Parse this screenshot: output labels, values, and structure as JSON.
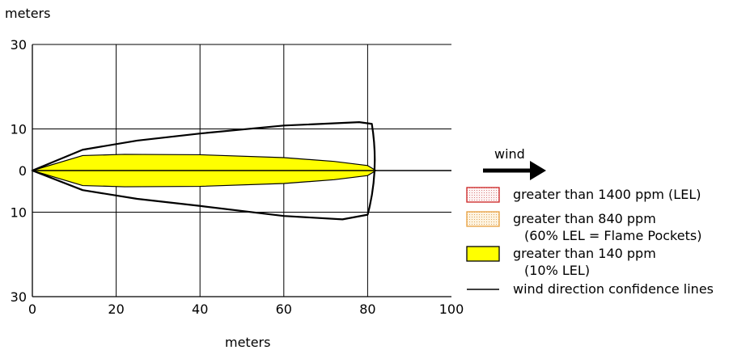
{
  "chart_data": {
    "type": "area",
    "y_unit_label": "meters",
    "xlabel": "meters",
    "x_ticks": [
      "0",
      "20",
      "40",
      "60",
      "80",
      "100"
    ],
    "y_ticks": [
      {
        "value": 30,
        "label": "30"
      },
      {
        "value": 10,
        "label": "10"
      },
      {
        "value": 0,
        "label": "0"
      },
      {
        "value": -10,
        "label": "10"
      },
      {
        "value": -30,
        "label": "30"
      }
    ],
    "xlim": [
      0,
      100
    ],
    "ylim": [
      -30,
      30
    ],
    "grid": true,
    "series": [
      {
        "name": "greater than 140 ppm (10% LEL)",
        "kind": "filled_plume",
        "color": "#ffff00",
        "half_width": [
          [
            0,
            0
          ],
          [
            12,
            3.6
          ],
          [
            22,
            3.9
          ],
          [
            40,
            3.8
          ],
          [
            60,
            3.1
          ],
          [
            72,
            2.2
          ],
          [
            80,
            1.2
          ],
          [
            82,
            0
          ]
        ]
      },
      {
        "name": "wind direction confidence lines",
        "kind": "line",
        "color": "#000000",
        "upper": [
          [
            0,
            0
          ],
          [
            12,
            5
          ],
          [
            25,
            7.2
          ],
          [
            40,
            8.9
          ],
          [
            60,
            10.8
          ],
          [
            78,
            11.6
          ],
          [
            81,
            11.2
          ]
        ],
        "lower": [
          [
            0,
            0
          ],
          [
            12,
            -4.7
          ],
          [
            25,
            -6.8
          ],
          [
            40,
            -8.5
          ],
          [
            60,
            -10.9
          ],
          [
            74,
            -11.7
          ],
          [
            80,
            -10.6
          ]
        ],
        "centerline_x": [
          0,
          100
        ]
      }
    ],
    "legend": [
      {
        "label_lines": [
          "greater than 1400 ppm (LEL)"
        ],
        "fill": "#fbecec",
        "border": "#cc2222"
      },
      {
        "label_lines": [
          "greater than 840 ppm",
          "(60% LEL = Flame Pockets)"
        ],
        "fill": "#fbeed6",
        "border": "#e8a040"
      },
      {
        "label_lines": [
          "greater than 140 ppm",
          "(10% LEL)"
        ],
        "fill": "#ffff00",
        "border": "#000000"
      },
      {
        "label_lines": [
          "wind direction confidence lines"
        ],
        "line": "#000000"
      }
    ],
    "legend_position": "right",
    "wind_label": "wind"
  }
}
